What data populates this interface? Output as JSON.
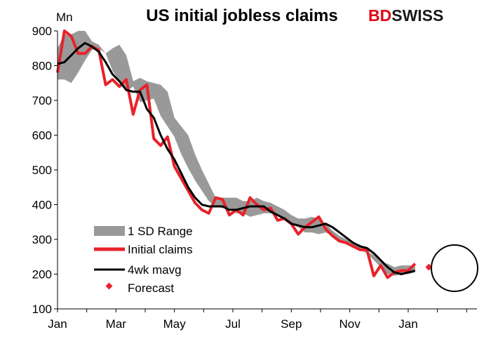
{
  "brand": {
    "logo_text_a": "BD",
    "logo_text_b": "SWISS",
    "color_a": "#e30613",
    "color_b": "#1a1a1a"
  },
  "chart_data": {
    "type": "line",
    "title": "US initial jobless claims",
    "ylabel": "Mn",
    "ylim": [
      100,
      900
    ],
    "yticks": [
      100,
      200,
      300,
      400,
      500,
      600,
      700,
      800,
      900
    ],
    "x_tick_labels": [
      "Jan",
      "Mar",
      "May",
      "Jul",
      "Sep",
      "Nov",
      "Jan"
    ],
    "x_range_weeks": [
      0,
      61
    ],
    "x_tick_weeks": [
      0,
      8.5,
      17,
      25.5,
      34,
      42.5,
      51
    ],
    "legend_position": "bottom-left",
    "grid": false,
    "series": [
      {
        "name": "1 SD Range",
        "kind": "band",
        "color": "#999999",
        "x": [
          0,
          1,
          2,
          3,
          4,
          5,
          6,
          7,
          8,
          9,
          10,
          11,
          12,
          13,
          14,
          15,
          16,
          17,
          18,
          19,
          20,
          21,
          22,
          23,
          24,
          25,
          26,
          27,
          28,
          29,
          30,
          31,
          32,
          33,
          34,
          35,
          36,
          37,
          38,
          39,
          40,
          41,
          42,
          43,
          44,
          45,
          46,
          47,
          48,
          49,
          50,
          51,
          52
        ],
        "low": [
          760,
          760,
          750,
          780,
          815,
          845,
          850,
          835,
          785,
          755,
          725,
          740,
          695,
          700,
          705,
          655,
          625,
          595,
          545,
          505,
          470,
          440,
          410,
          395,
          390,
          390,
          375,
          375,
          365,
          370,
          375,
          375,
          370,
          360,
          345,
          335,
          320,
          320,
          315,
          320,
          310,
          295,
          285,
          275,
          270,
          260,
          240,
          220,
          200,
          195,
          200,
          200,
          205
        ],
        "high": [
          850,
          890,
          890,
          900,
          900,
          870,
          860,
          835,
          850,
          860,
          830,
          755,
          765,
          755,
          750,
          745,
          725,
          650,
          625,
          600,
          545,
          500,
          460,
          420,
          420,
          420,
          420,
          410,
          410,
          420,
          410,
          405,
          395,
          385,
          370,
          360,
          360,
          365,
          360,
          345,
          325,
          310,
          300,
          290,
          285,
          265,
          255,
          235,
          230,
          220,
          225,
          225,
          225
        ]
      },
      {
        "name": "Initial claims",
        "kind": "line",
        "color": "#e8222a",
        "x": [
          0,
          1,
          2,
          3,
          4,
          5,
          6,
          7,
          8,
          9,
          10,
          11,
          12,
          13,
          14,
          15,
          16,
          17,
          18,
          19,
          20,
          21,
          22,
          23,
          24,
          25,
          26,
          27,
          28,
          29,
          30,
          31,
          32,
          33,
          34,
          35,
          36,
          37,
          38,
          39,
          40,
          41,
          42,
          43,
          44,
          45,
          46,
          47,
          48,
          49,
          50,
          51,
          52
        ],
        "values": [
          780,
          900,
          885,
          835,
          835,
          855,
          845,
          745,
          760,
          740,
          760,
          660,
          730,
          745,
          590,
          570,
          595,
          510,
          475,
          440,
          405,
          385,
          375,
          420,
          415,
          370,
          385,
          370,
          420,
          400,
          385,
          390,
          355,
          360,
          345,
          315,
          335,
          350,
          365,
          330,
          310,
          295,
          290,
          280,
          270,
          270,
          195,
          225,
          190,
          205,
          210,
          210,
          230
        ]
      },
      {
        "name": "4wk mavg",
        "kind": "line",
        "color": "#000000",
        "x": [
          0,
          1,
          2,
          3,
          4,
          5,
          6,
          7,
          8,
          9,
          10,
          11,
          12,
          13,
          14,
          15,
          16,
          17,
          18,
          19,
          20,
          21,
          22,
          23,
          24,
          25,
          26,
          27,
          28,
          29,
          30,
          31,
          32,
          33,
          34,
          35,
          36,
          37,
          38,
          39,
          40,
          41,
          42,
          43,
          44,
          45,
          46,
          47,
          48,
          49,
          50,
          51,
          52
        ],
        "values": [
          805,
          810,
          830,
          850,
          865,
          855,
          840,
          810,
          775,
          755,
          730,
          725,
          725,
          675,
          650,
          600,
          560,
          530,
          490,
          450,
          420,
          400,
          395,
          395,
          395,
          385,
          385,
          390,
          395,
          395,
          395,
          380,
          370,
          360,
          345,
          340,
          335,
          335,
          340,
          345,
          335,
          320,
          305,
          290,
          280,
          275,
          260,
          240,
          220,
          205,
          200,
          205,
          210
        ]
      },
      {
        "name": "Forecast",
        "kind": "point",
        "color": "#e8222a",
        "x": [
          54
        ],
        "values": [
          220
        ]
      }
    ]
  }
}
